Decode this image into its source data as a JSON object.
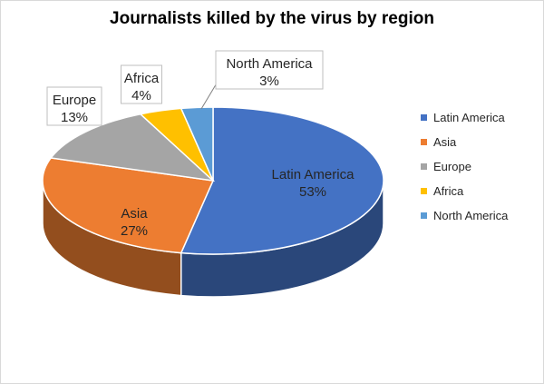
{
  "chart_data": {
    "type": "pie",
    "title": "Journalists killed by the virus by region",
    "categories": [
      "Latin America",
      "Asia",
      "Europe",
      "Africa",
      "North America"
    ],
    "values": [
      53,
      27,
      13,
      4,
      3
    ],
    "labels": [
      "53%",
      "27%",
      "13%",
      "4%",
      "3%"
    ],
    "colors": [
      "#4472C4",
      "#ED7D31",
      "#A5A5A5",
      "#FFC000",
      "#5B9BD5"
    ],
    "legend_position": "right",
    "style": "3d"
  }
}
